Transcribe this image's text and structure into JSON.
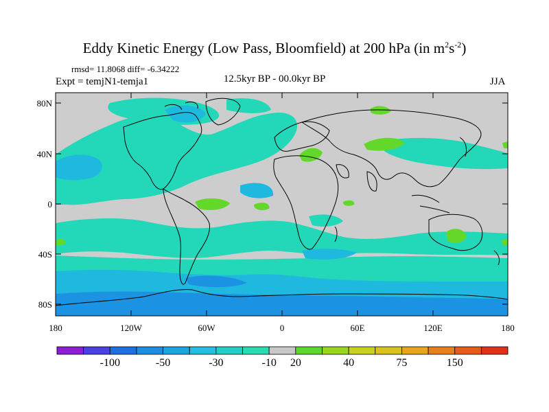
{
  "title": {
    "main": "Eddy Kinetic Energy (Low Pass, Bloomfield) at 200 hPa (in m",
    "sup1": "2",
    "mid": "s",
    "sup2": "-2",
    "end": ")"
  },
  "stats": "rmsd= 11.8068 diff= -6.34222",
  "experiment": "Expt = temjN1-temja1",
  "period": "12.5kyr BP - 00.0kyr BP",
  "season": "JJA",
  "lat_labels": [
    "80N",
    "40N",
    "0",
    "40S",
    "80S"
  ],
  "lon_labels": [
    "180",
    "120W",
    "60W",
    "0",
    "60E",
    "120E",
    "180"
  ],
  "colorbar": {
    "labels": [
      "-100",
      "-50",
      "-30",
      "-10",
      "20",
      "40",
      "75",
      "150"
    ],
    "colors": [
      "#8c1fd6",
      "#4b3fe6",
      "#1f6fe0",
      "#1c8de0",
      "#1aa6e0",
      "#23bfe0",
      "#22cfc8",
      "#28dbb0",
      "#c8c8c8",
      "#5fd62a",
      "#9ad61e",
      "#c8d21c",
      "#d9c21c",
      "#e6a51a",
      "#e6801a",
      "#e65a1a",
      "#e0301a"
    ],
    "fill_colors": {
      "background": "#cdcdcd",
      "neg_light": "#23d7b9",
      "neg_medium": "#1fb9df",
      "neg_dark": "#1c93e2",
      "pos_light": "#64d82a"
    }
  }
}
